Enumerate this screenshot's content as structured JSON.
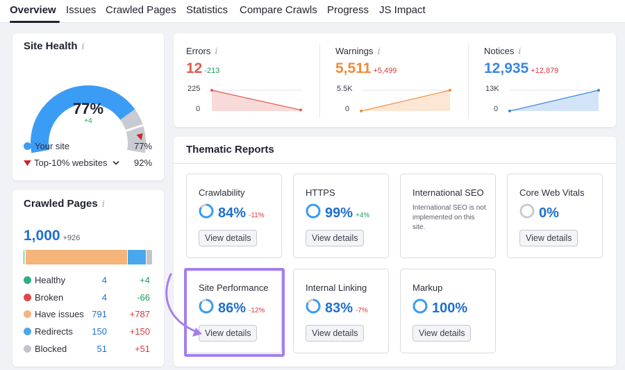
{
  "nav": {
    "tabs": [
      "Overview",
      "Issues",
      "Crawled Pages",
      "Statistics",
      "Compare Crawls",
      "Progress",
      "JS Impact"
    ]
  },
  "site_health": {
    "title": "Site Health",
    "info_icon": "i",
    "score": "77%",
    "score_fraction": 0.77,
    "change": "+4",
    "legend": [
      {
        "label": "Your site",
        "value": "77%",
        "color": "#3b9cf5"
      },
      {
        "label": "Top-10% websites",
        "value": "92%",
        "color": "#c8232c"
      }
    ]
  },
  "crawled_pages": {
    "title": "Crawled Pages",
    "info_icon": "i",
    "total": "1,000",
    "change": "+926",
    "bar": [
      {
        "key": "healthy",
        "value": 4,
        "color": "#2eaf82"
      },
      {
        "key": "broken",
        "value": 4,
        "color": "#e0474a"
      },
      {
        "key": "have_issues",
        "value": 791,
        "color": "#f4b47a"
      },
      {
        "key": "redirects",
        "value": 150,
        "color": "#4aa7ee"
      },
      {
        "key": "blocked",
        "value": 51,
        "color": "#c2c4cc"
      }
    ],
    "rows": [
      {
        "label": "Healthy",
        "value": "4",
        "change": "+4",
        "color": "#2eaf82",
        "change_color": "#1d9a5e"
      },
      {
        "label": "Broken",
        "value": "4",
        "change": "-66",
        "color": "#e0474a",
        "change_color": "#1d9a5e"
      },
      {
        "label": "Have issues",
        "value": "791",
        "change": "+787",
        "color": "#f4b47a",
        "change_color": "#d8393d"
      },
      {
        "label": "Redirects",
        "value": "150",
        "change": "+150",
        "color": "#4aa7ee",
        "change_color": "#d8393d"
      },
      {
        "label": "Blocked",
        "value": "51",
        "change": "+51",
        "color": "#c2c4cc",
        "change_color": "#d8393d"
      }
    ]
  },
  "metrics": [
    {
      "label": "Errors",
      "value": "12",
      "change": "-213",
      "ymax": "225",
      "ymin": "0",
      "color": "#e05a4f",
      "delta_color": "#1d9a5e",
      "start": 225,
      "end": 12
    },
    {
      "label": "Warnings",
      "value": "5,511",
      "change": "+5,499",
      "ymax": "5.5K",
      "ymin": "0",
      "color": "#f08c3a",
      "delta_color": "#d8393d",
      "start": 12,
      "end": 5511
    },
    {
      "label": "Notices",
      "value": "12,935",
      "change": "+12,879",
      "ymax": "13K",
      "ymin": "0",
      "color": "#3b86e0",
      "delta_color": "#d8393d",
      "start": 56,
      "end": 12935
    }
  ],
  "thematic": {
    "title": "Thematic Reports",
    "cards": [
      {
        "name": "Crawlability",
        "pct": "84%",
        "fraction": 0.84,
        "delta": "-11%",
        "delta_color": "#d8393d",
        "button": "View details"
      },
      {
        "name": "HTTPS",
        "pct": "99%",
        "fraction": 0.99,
        "delta": "+4%",
        "delta_color": "#1d9a5e",
        "button": "View details"
      },
      {
        "name": "International SEO",
        "note": "International SEO is not implemented on this site."
      },
      {
        "name": "Core Web Vitals",
        "pct": "0%",
        "fraction": 0.0,
        "delta": "",
        "delta_color": "#1d9a5e",
        "button": "View details"
      },
      {
        "name": "Site Performance",
        "pct": "86%",
        "fraction": 0.86,
        "delta": "-12%",
        "delta_color": "#d8393d",
        "button": "View details"
      },
      {
        "name": "Internal Linking",
        "pct": "83%",
        "fraction": 0.83,
        "delta": "-7%",
        "delta_color": "#d8393d",
        "button": "View details"
      },
      {
        "name": "Markup",
        "pct": "100%",
        "fraction": 1.0,
        "delta": "",
        "delta_color": "#1d9a5e",
        "button": "View details"
      }
    ]
  },
  "colors": {
    "accent": "#1f6fce",
    "highlight": "#a57ef0"
  }
}
